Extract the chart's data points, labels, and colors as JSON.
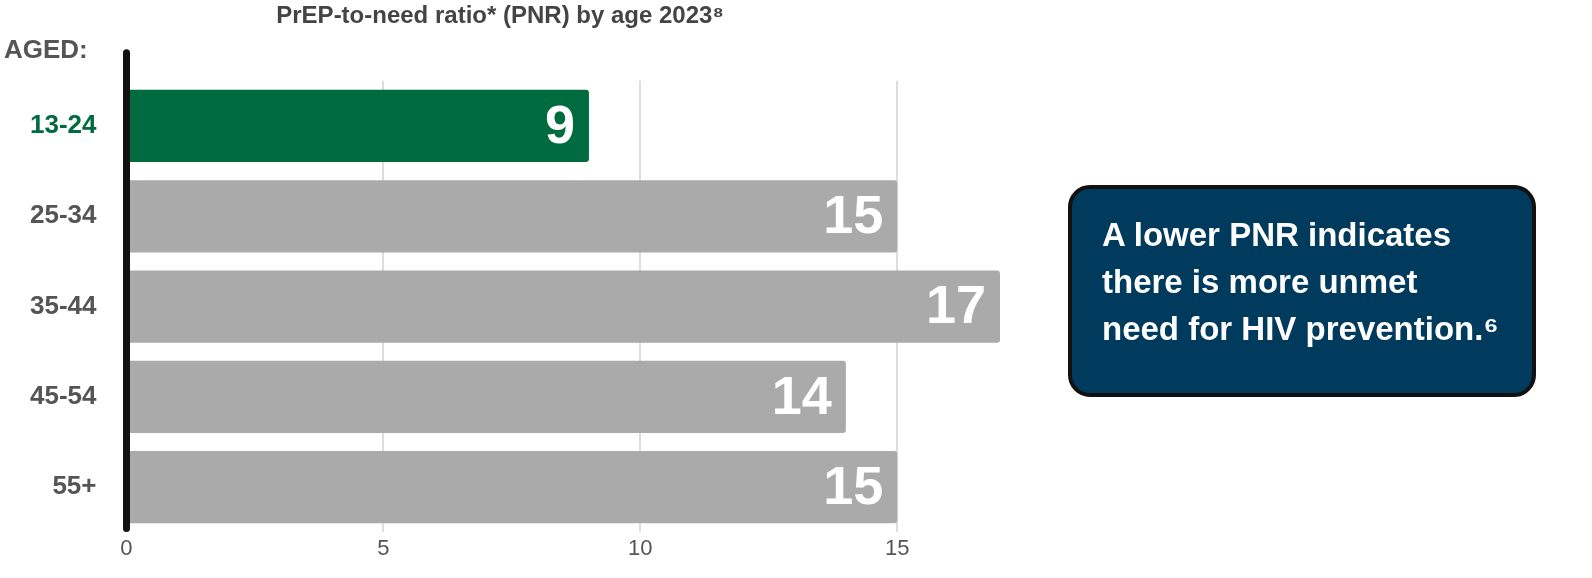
{
  "chart_data": {
    "type": "bar",
    "orientation": "horizontal",
    "title": "PrEP-to-need ratio* (PNR) by age 2023⁸",
    "categories": [
      "13-24",
      "25-34",
      "35-44",
      "45-54",
      "55+"
    ],
    "values": [
      9,
      15,
      17,
      14,
      15
    ],
    "colors": [
      "#006b3f",
      "#aaaaaa",
      "#aaaaaa",
      "#aaaaaa",
      "#aaaaaa"
    ],
    "xlim": [
      0,
      17
    ],
    "xticks": [
      0,
      5,
      10,
      15
    ],
    "grid": "x",
    "legend": false,
    "data_labels": true,
    "annotations": [
      "AGED:",
      "A lower PNR indicates there is more unmet need for HIV prevention.⁶"
    ]
  }
}
